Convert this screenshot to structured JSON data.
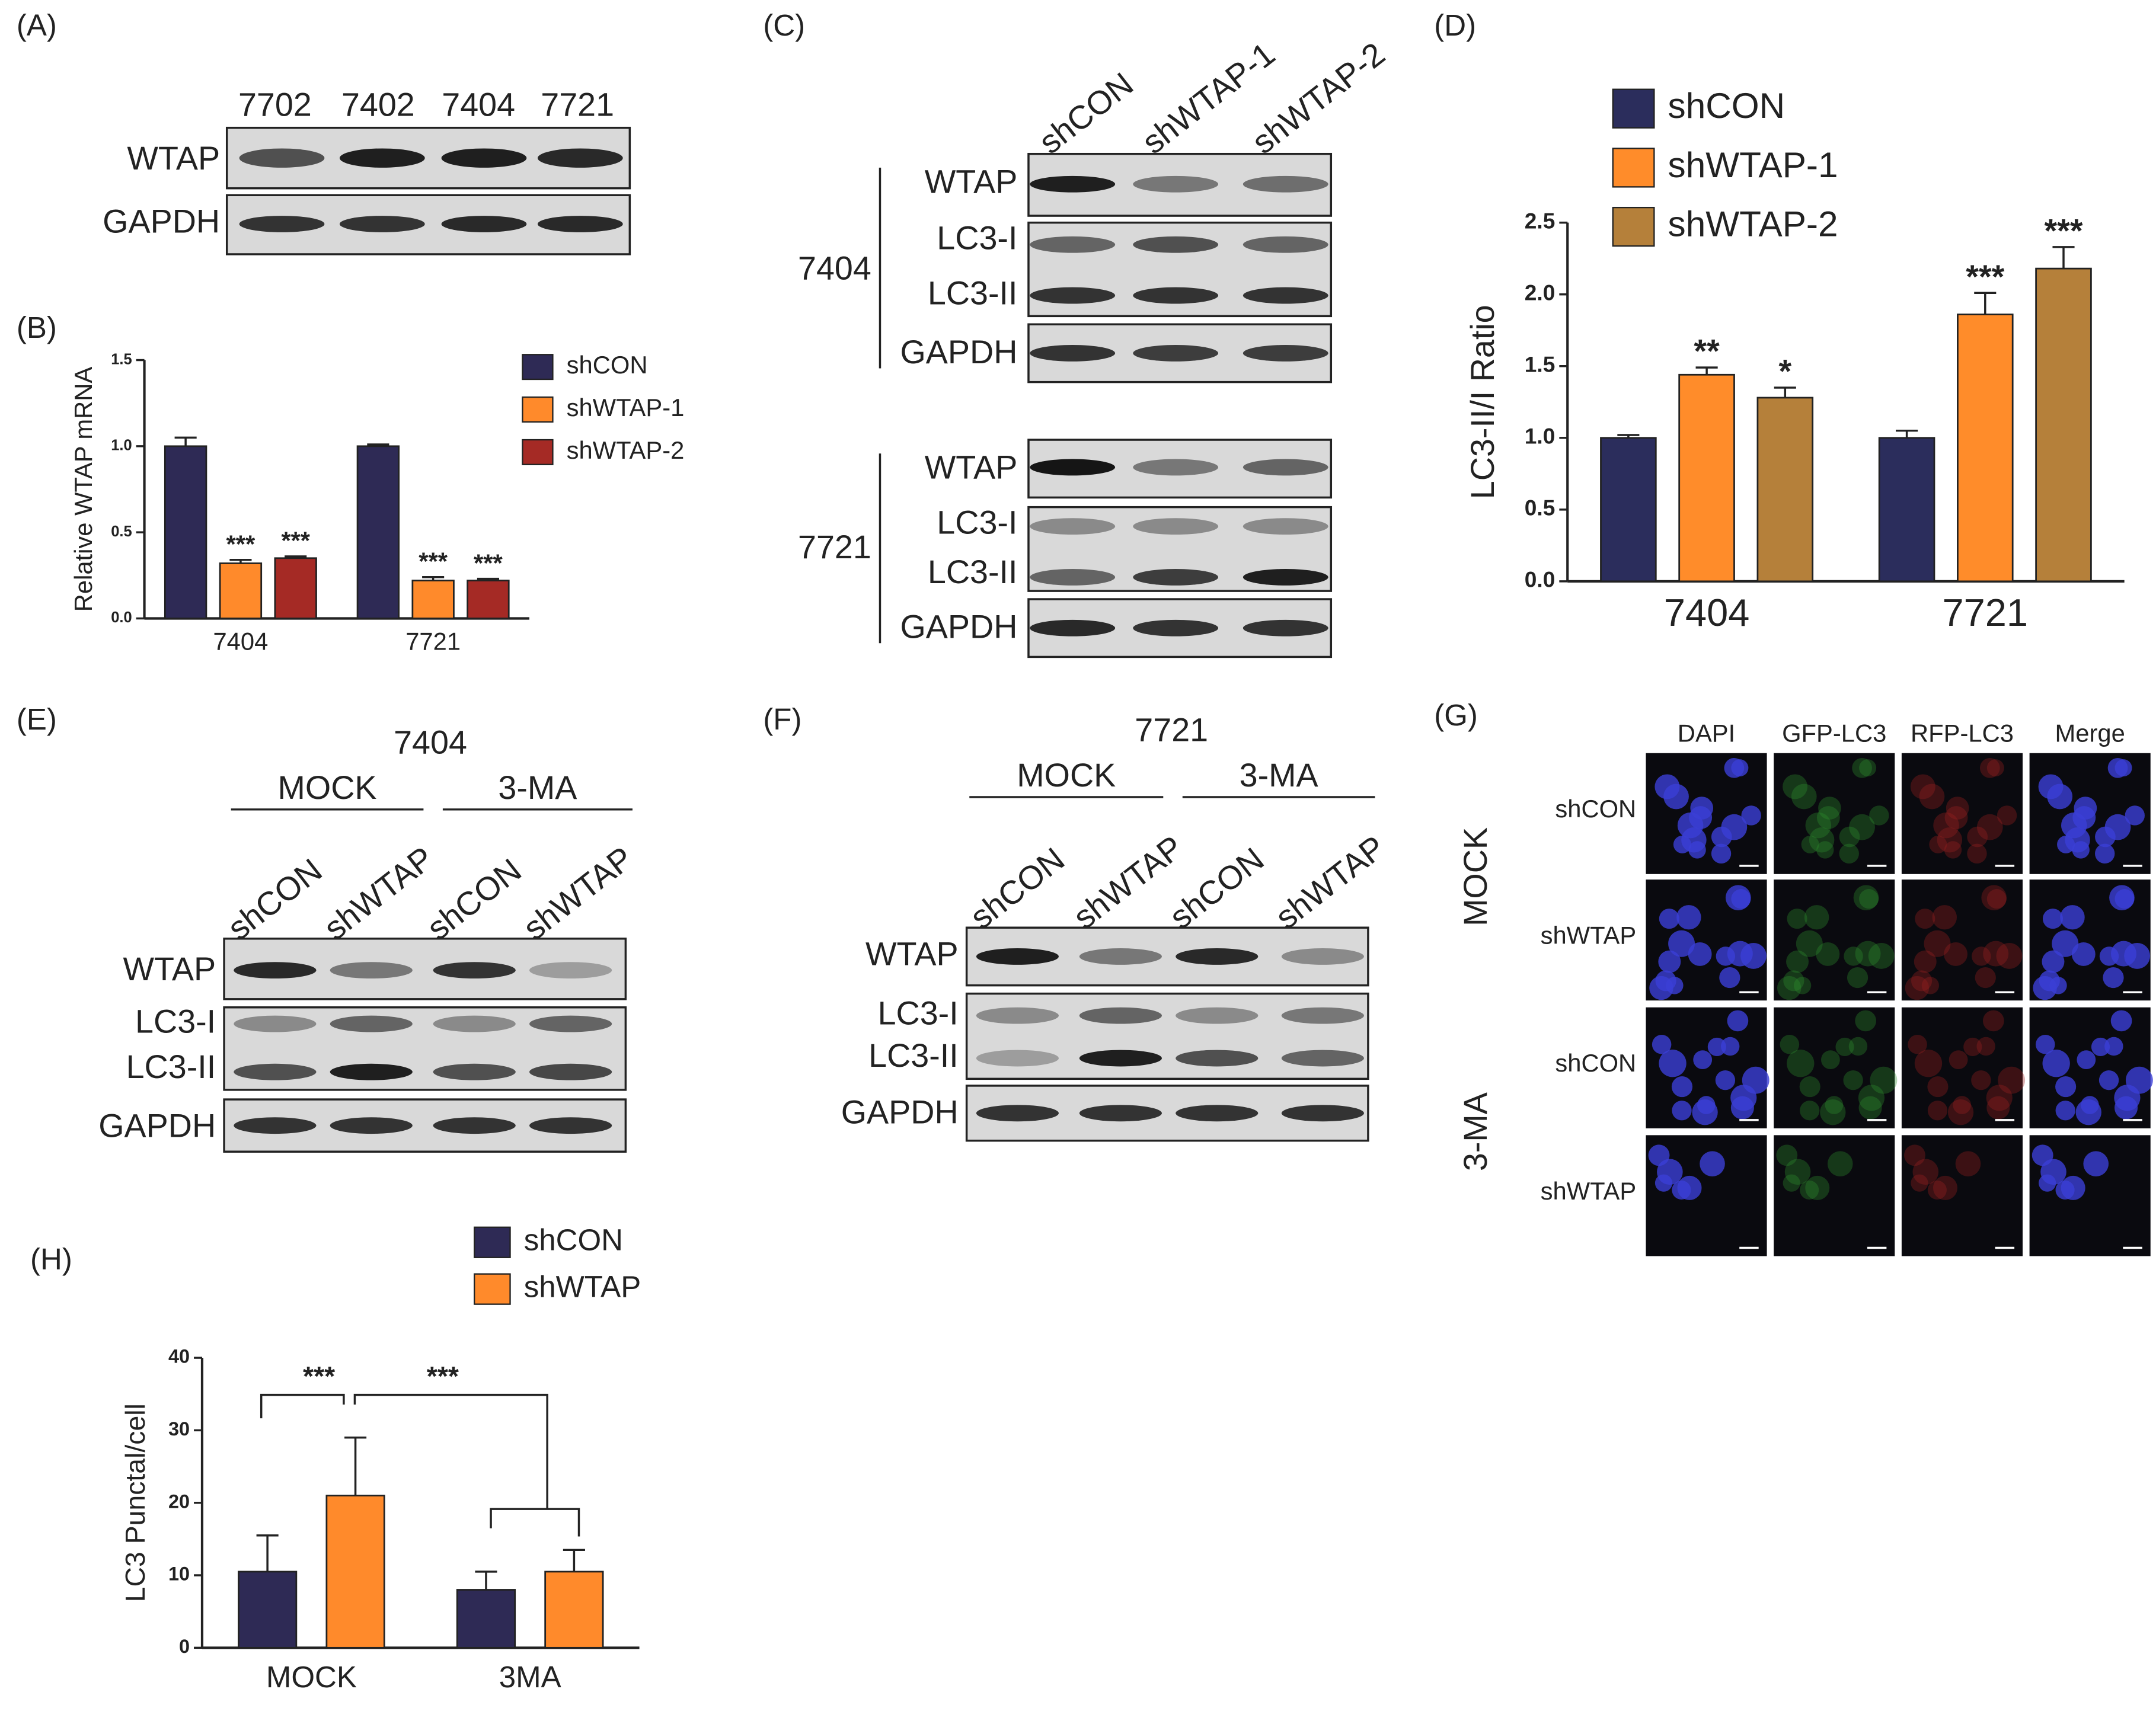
{
  "panel_labels": [
    "(A)",
    "(B)",
    "(C)",
    "(D)",
    "(E)",
    "(F)",
    "(G)",
    "(H)"
  ],
  "blot_a": {
    "lanes": [
      "7702",
      "7402",
      "7404",
      "7721"
    ],
    "rows": [
      "WTAP",
      "GAPDH"
    ]
  },
  "blot_c": {
    "lanes": [
      "shCON",
      "shWTAP-1",
      "shWTAP-2"
    ],
    "groups": [
      {
        "cell": "7404",
        "rows": [
          "WTAP",
          "LC3-I",
          "LC3-II",
          "GAPDH"
        ]
      },
      {
        "cell": "7721",
        "rows": [
          "WTAP",
          "LC3-I",
          "LC3-II",
          "GAPDH"
        ]
      }
    ]
  },
  "blot_e": {
    "cell": "7404",
    "treatments": [
      "MOCK",
      "3-MA"
    ],
    "lanes": [
      "shCON",
      "shWTAP",
      "shCON",
      "shWTAP"
    ],
    "rows": [
      "WTAP",
      "LC3-I",
      "LC3-II",
      "GAPDH"
    ]
  },
  "blot_f": {
    "cell": "7721",
    "treatments": [
      "MOCK",
      "3-MA"
    ],
    "lanes": [
      "shCON",
      "shWTAP",
      "shCON",
      "shWTAP"
    ],
    "rows": [
      "WTAP",
      "LC3-I",
      "LC3-II",
      "GAPDH"
    ]
  },
  "imaging_g": {
    "columns": [
      "DAPI",
      "GFP-LC3",
      "RFP-LC3",
      "Merge"
    ],
    "groups": [
      {
        "treatment": "MOCK",
        "rows": [
          "shCON",
          "shWTAP"
        ]
      },
      {
        "treatment": "3-MA",
        "rows": [
          "shCON",
          "shWTAP"
        ]
      }
    ]
  },
  "chart_data": [
    {
      "type": "bar",
      "y_label": "Relative WTAP mRNA",
      "categories": [
        "7404",
        "7721"
      ],
      "series": [
        {
          "name": "shCON",
          "color": "#2e2a55",
          "values": [
            1.0,
            1.0
          ],
          "errors": [
            0.05,
            0.01
          ],
          "significance": [
            null,
            null
          ]
        },
        {
          "name": "shWTAP-1",
          "color": "#ff8a2b",
          "values": [
            0.32,
            0.22
          ],
          "errors": [
            0.02,
            0.02
          ],
          "significance": [
            "***",
            "***"
          ]
        },
        {
          "name": "shWTAP-2",
          "color": "#a52a25",
          "values": [
            0.35,
            0.22
          ],
          "errors": [
            0.01,
            0.01
          ],
          "significance": [
            "***",
            "***"
          ]
        }
      ],
      "ylim": [
        0,
        1.5
      ],
      "yticks": [
        {
          "value": 0,
          "label": "0.0"
        },
        {
          "value": 0.5,
          "label": "0.5"
        },
        {
          "value": 1,
          "label": "1.0"
        },
        {
          "value": 1.5,
          "label": "1.5"
        }
      ],
      "legend": "right"
    },
    {
      "type": "bar",
      "y_label": "LC3-II/I Ratio",
      "categories": [
        "7404",
        "7721"
      ],
      "series": [
        {
          "name": "shCON",
          "color": "#2b2d5c",
          "values": [
            1.0,
            1.0
          ],
          "errors": [
            0.02,
            0.05
          ],
          "significance": [
            null,
            null
          ]
        },
        {
          "name": "shWTAP-1",
          "color": "#ff8c2a",
          "values": [
            1.44,
            1.86
          ],
          "errors": [
            0.05,
            0.15
          ],
          "significance": [
            "**",
            "***"
          ]
        },
        {
          "name": "shWTAP-2",
          "color": "#b5803a",
          "values": [
            1.28,
            2.18
          ],
          "errors": [
            0.07,
            0.15
          ],
          "significance": [
            "*",
            "***"
          ]
        }
      ],
      "ylim": [
        0,
        2.5
      ],
      "yticks": [
        {
          "value": 0,
          "label": "0.0"
        },
        {
          "value": 0.5,
          "label": "0.5"
        },
        {
          "value": 1,
          "label": "1.0"
        },
        {
          "value": 1.5,
          "label": "1.5"
        },
        {
          "value": 2,
          "label": "2.0"
        },
        {
          "value": 2.5,
          "label": "2.5"
        }
      ],
      "legend": "top"
    },
    {
      "type": "bar",
      "y_label": "LC3 Punctal/cell",
      "categories": [
        "MOCK",
        "3MA"
      ],
      "series": [
        {
          "name": "shCON",
          "color": "#2e2a55",
          "values": [
            10.5,
            8
          ],
          "errors": [
            5,
            2.5
          ],
          "significance": [
            null,
            null
          ]
        },
        {
          "name": "shWTAP",
          "color": "#ff8a2b",
          "values": [
            21,
            10.5
          ],
          "errors": [
            8,
            3
          ],
          "significance": [
            null,
            null
          ]
        }
      ],
      "ylim": [
        0,
        40
      ],
      "yticks": [
        0,
        10,
        20,
        30,
        40
      ],
      "annotations": [
        "***",
        "***"
      ],
      "legend": "top"
    }
  ]
}
